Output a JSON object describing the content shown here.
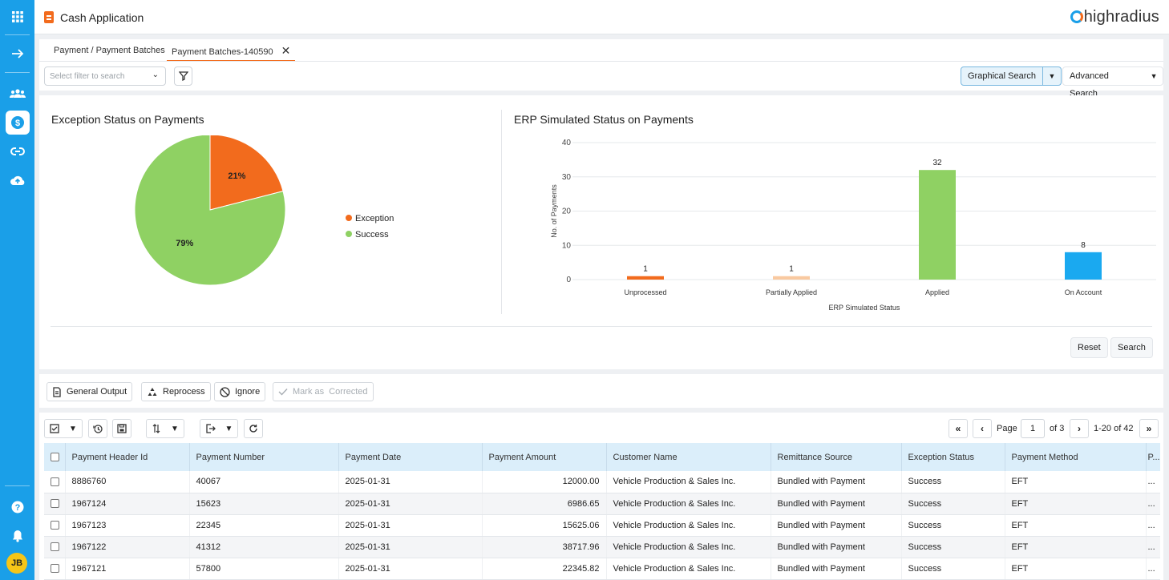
{
  "app": {
    "title": "Cash Application",
    "brand": "highradius"
  },
  "sidebar": {
    "avatar_initials": "JB"
  },
  "tabs": [
    {
      "label": "Payment / Payment Batches"
    },
    {
      "label": "Payment Batches-140590"
    }
  ],
  "filter": {
    "placeholder": "Select filter to search"
  },
  "search_buttons": {
    "graphical": "Graphical Search",
    "advanced": "Advanced Search"
  },
  "pie": {
    "title": "Exception Status on Payments",
    "chart_data": {
      "type": "pie",
      "slices": [
        {
          "name": "Exception",
          "value": 21,
          "label": "21%",
          "color": "#f26b1d"
        },
        {
          "name": "Success",
          "value": 79,
          "label": "79%",
          "color": "#8fd163"
        }
      ]
    }
  },
  "bar": {
    "title": "ERP Simulated Status on Payments",
    "chart_data": {
      "type": "bar",
      "categories": [
        "Unprocessed",
        "Partially Applied",
        "Applied",
        "On Account"
      ],
      "values": [
        1,
        1,
        32,
        8
      ],
      "colors": [
        "#f26b1d",
        "#f9c9a0",
        "#8fd163",
        "#1aa9f0"
      ],
      "xlabel": "ERP Simulated Status",
      "ylabel": "No. of Payments",
      "ylim": [
        0,
        40
      ],
      "yticks": [
        "0",
        "10",
        "20",
        "30",
        "40"
      ]
    }
  },
  "chart_buttons": {
    "reset": "Reset",
    "search": "Search"
  },
  "actions": {
    "general_output": "General Output",
    "reprocess": "Reprocess",
    "ignore": "Ignore",
    "mark_corrected": "Mark as  Corrected"
  },
  "pager": {
    "page_label": "Page",
    "page_value": "1",
    "of_label": "of 3",
    "range": "1-20 of 42"
  },
  "table": {
    "columns": [
      "Payment Header Id",
      "Payment Number",
      "Payment Date",
      "Payment Amount",
      "Customer Name",
      "Remittance Source",
      "Exception Status",
      "Payment Method",
      "P..."
    ],
    "rows": [
      [
        "8886760",
        "40067",
        "2025-01-31",
        "12000.00",
        "Vehicle Production & Sales Inc.",
        "Bundled with Payment",
        "Success",
        "EFT",
        "..."
      ],
      [
        "1967124",
        "15623",
        "2025-01-31",
        "6986.65",
        "Vehicle Production & Sales Inc.",
        "Bundled with Payment",
        "Success",
        "EFT",
        "..."
      ],
      [
        "1967123",
        "22345",
        "2025-01-31",
        "15625.06",
        "Vehicle Production & Sales Inc.",
        "Bundled with Payment",
        "Success",
        "EFT",
        "..."
      ],
      [
        "1967122",
        "41312",
        "2025-01-31",
        "38717.96",
        "Vehicle Production & Sales Inc.",
        "Bundled with Payment",
        "Success",
        "EFT",
        "..."
      ],
      [
        "1967121",
        "57800",
        "2025-01-31",
        "22345.82",
        "Vehicle Production & Sales Inc.",
        "Bundled with Payment",
        "Success",
        "EFT",
        "..."
      ]
    ]
  }
}
